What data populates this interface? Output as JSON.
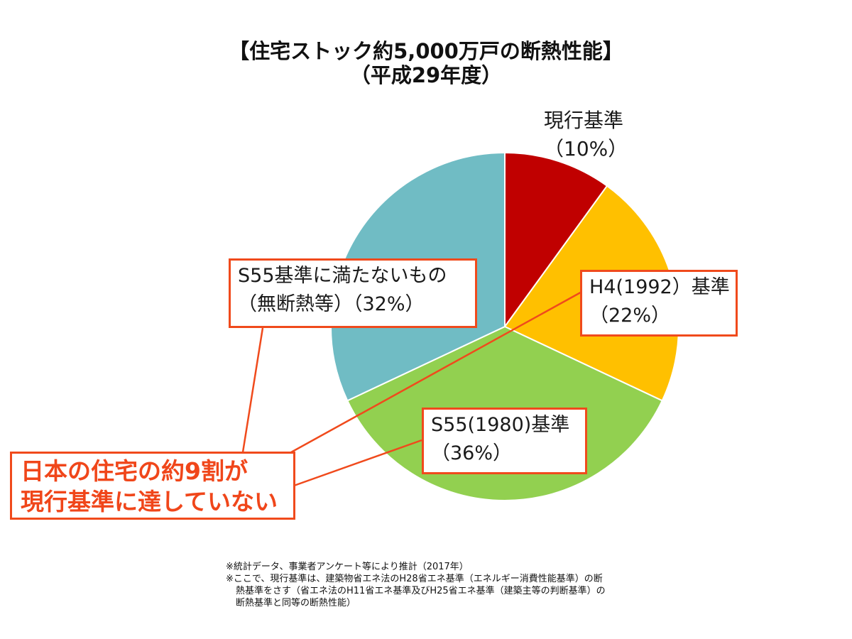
{
  "chart_data": {
    "type": "pie",
    "title": "【住宅ストック約5,000万戸の断熱性能】",
    "subtitle": "（平成29年度）",
    "start_angle_deg": 0,
    "direction": "clockwise",
    "slices": [
      {
        "line1": "現行基準",
        "line2": "（10%）",
        "value": 10,
        "color": "#c00000"
      },
      {
        "line1": "H4(1992）基準",
        "line2": "（22%）",
        "value": 22,
        "color": "#ffc000"
      },
      {
        "line1": "S55(1980)基準",
        "line2": "（36%）",
        "value": 36,
        "color": "#92d050"
      },
      {
        "line1": "S55基準に満たないもの",
        "line2": "（無断熱等）（32%）",
        "value": 32,
        "color": "#70bcc4"
      }
    ]
  },
  "callout": {
    "line1": "日本の住宅の約9割が",
    "line2": "現行基準に達していない"
  },
  "notes": {
    "line1": "※統計データ、事業者アンケート等により推計（2017年）",
    "line2": "※ここで、現行基準は、建築物省エネ法のH28省エネ基準（エネルギー消費性能基準）の断",
    "line3": "熱基準をさす（省エネ法のH11省エネ基準及びH25省エネ基準（建築主等の判断基準）の",
    "line4": "断熱基準と同等の断熱性能）"
  },
  "colors": {
    "accent_border": "#f04a1c",
    "callout_text": "#f0461a"
  }
}
